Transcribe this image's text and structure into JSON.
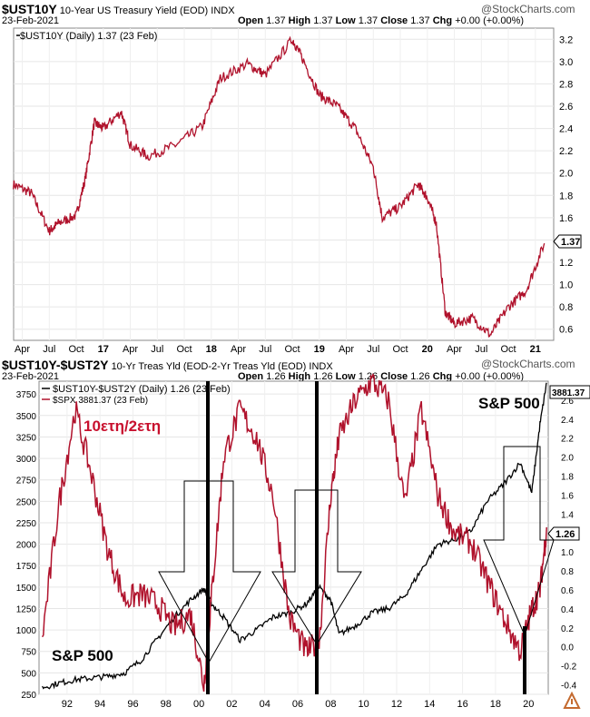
{
  "panel1": {
    "symbol": "$UST10Y",
    "description": "10-Year US Treasury Yield (EOD)",
    "exchange": "INDX",
    "date": "23-Feb-2021",
    "open_label": "Open",
    "open": "1.37",
    "high_label": "High",
    "high": "1.37",
    "low_label": "Low",
    "low": "1.37",
    "close_label": "Close",
    "close": "1.37",
    "chg_label": "Chg",
    "chg": "+0.00 (+0.00%)",
    "watermark": "@StockCharts.com",
    "legend": "$UST10Y (Daily) 1.37 (23 Feb)",
    "last_value_tag": "1.37",
    "x_ticks": [
      "Apr",
      "Jul",
      "Oct",
      "17",
      "Apr",
      "Jul",
      "Oct",
      "18",
      "Apr",
      "Jul",
      "Oct",
      "19",
      "Apr",
      "Jul",
      "Oct",
      "20",
      "Apr",
      "Jul",
      "Oct",
      "21"
    ],
    "y_ticks": [
      "3.2",
      "3.0",
      "2.8",
      "2.6",
      "2.4",
      "2.2",
      "2.0",
      "1.8",
      "1.6",
      "1.4",
      "1.2",
      "1.0",
      "0.8",
      "0.6"
    ]
  },
  "panel2": {
    "symbol": "$UST10Y-$UST2Y",
    "description": "10-Yr Treas Yld (EOD-2-Yr Treas Yld (EOD)",
    "exchange": "INDX",
    "date": "23-Feb-2021",
    "open_label": "Open",
    "open": "1.26",
    "high_label": "High",
    "high": "1.26",
    "low_label": "Low",
    "low": "1.26",
    "close_label": "Close",
    "close": "1.26",
    "chg_label": "Chg",
    "chg": "+0.00 (+0.00%)",
    "watermark": "@StockCharts.com",
    "legend1": "$UST10Y-$UST2Y (Daily) 1.26 (23 Feb)",
    "legend2": "$SPX 3881.37 (23 Feb)",
    "left_tag": "3881.37",
    "right_tag": "1.26",
    "annotation_spread": "10ετη/2ετη",
    "annotation_sp_top": "S&P 500",
    "annotation_sp_bottom": "S&P 500",
    "x_ticks": [
      "92",
      "94",
      "96",
      "98",
      "00",
      "02",
      "04",
      "06",
      "08",
      "10",
      "12",
      "14",
      "16",
      "18",
      "20"
    ],
    "left_ticks": [
      "3750",
      "3500",
      "3250",
      "3000",
      "2750",
      "2500",
      "2250",
      "2000",
      "1750",
      "1500",
      "1250",
      "1000",
      "750",
      "500",
      "250"
    ],
    "right_ticks": [
      "2.6",
      "2.4",
      "2.2",
      "2.0",
      "1.8",
      "1.6",
      "1.4",
      "1.2",
      "1.0",
      "0.8",
      "0.6",
      "0.4",
      "0.2",
      "0.0",
      "-0.2",
      "-0.4"
    ]
  },
  "colors": {
    "yield_line": "#b0122c",
    "spx_line": "#000000",
    "annotation_red": "#c8102e",
    "grid": "#e4e4e4"
  },
  "chart_data": [
    {
      "type": "line",
      "title": "$UST10Y 10-Year US Treasury Yield (EOD)",
      "ylim": [
        0.5,
        3.3
      ],
      "x": [
        "2016-03",
        "2016-05",
        "2016-07",
        "2016-08",
        "2016-10",
        "2016-11",
        "2016-12",
        "2017-01",
        "2017-03",
        "2017-04",
        "2017-06",
        "2017-09",
        "2017-12",
        "2018-02",
        "2018-05",
        "2018-07",
        "2018-10",
        "2018-11",
        "2019-01",
        "2019-03",
        "2019-05",
        "2019-07",
        "2019-08",
        "2019-10",
        "2019-12",
        "2020-01",
        "2020-02",
        "2020-03",
        "2020-04",
        "2020-06",
        "2020-08",
        "2020-10",
        "2020-12",
        "2021-02"
      ],
      "series": [
        {
          "name": "$UST10Y",
          "values": [
            1.9,
            1.82,
            1.48,
            1.55,
            1.62,
            1.95,
            2.45,
            2.4,
            2.55,
            2.25,
            2.15,
            2.25,
            2.42,
            2.85,
            2.98,
            2.88,
            3.2,
            3.05,
            2.7,
            2.6,
            2.4,
            2.05,
            1.6,
            1.7,
            1.9,
            1.78,
            1.55,
            0.75,
            0.65,
            0.7,
            0.55,
            0.8,
            0.95,
            1.37
          ]
        }
      ]
    },
    {
      "type": "line",
      "title": "$UST10Y-$UST2Y 10-Yr Treas Yld (EOD-2-Yr Treas Yld (EOD)",
      "x": [
        1990.5,
        1991.5,
        1992.5,
        1993.5,
        1994.5,
        1995.5,
        1996.5,
        1997.5,
        1998.5,
        1999.5,
        2000.3,
        2000.8,
        2001.5,
        2002.5,
        2003.5,
        2004.5,
        2005.5,
        2006.5,
        2007.3,
        2008.0,
        2008.5,
        2009.5,
        2010.5,
        2011.5,
        2012.5,
        2013.5,
        2014.5,
        2015.5,
        2016.5,
        2017.5,
        2018.5,
        2019.5,
        2020.2,
        2020.7,
        2021.1
      ],
      "series": [
        {
          "name": "$UST10Y-$UST2Y",
          "axis": "right",
          "ylim": [
            -0.5,
            2.8
          ],
          "values": [
            0.1,
            1.5,
            2.5,
            1.8,
            1.0,
            0.5,
            0.55,
            0.45,
            0.2,
            0.35,
            -0.4,
            0.6,
            2.0,
            2.5,
            2.2,
            1.6,
            0.3,
            -0.05,
            0.05,
            1.6,
            2.2,
            2.6,
            2.8,
            2.6,
            1.5,
            2.5,
            1.6,
            1.2,
            1.1,
            0.7,
            0.3,
            -0.05,
            0.4,
            0.6,
            1.26
          ]
        },
        {
          "name": "$SPX",
          "axis": "left",
          "ylim": [
            250,
            3900
          ],
          "values": [
            330,
            380,
            420,
            440,
            460,
            500,
            650,
            900,
            1150,
            1350,
            1480,
            1300,
            1150,
            880,
            1000,
            1150,
            1200,
            1300,
            1500,
            1350,
            950,
            1050,
            1200,
            1250,
            1400,
            1700,
            2000,
            2050,
            2150,
            2500,
            2700,
            2950,
            2600,
            3400,
            3881
          ]
        }
      ]
    }
  ]
}
